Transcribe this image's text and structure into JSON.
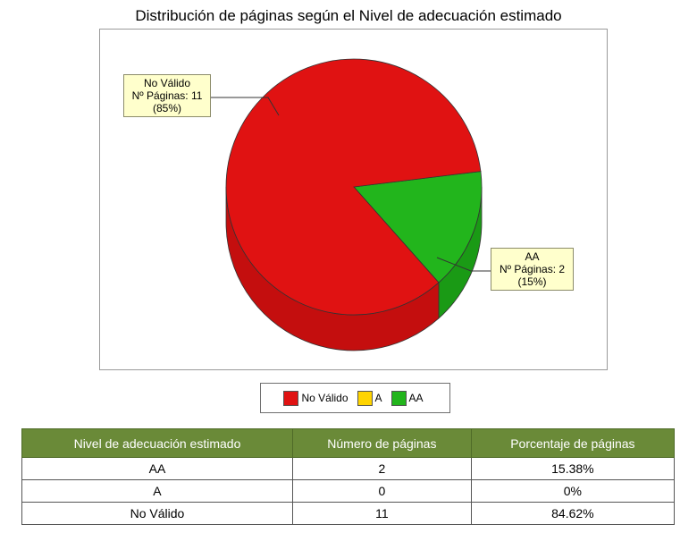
{
  "chart_data": {
    "type": "pie",
    "title": "Distribución de páginas según el Nivel de adecuación estimado",
    "slices": [
      {
        "label": "No Válido",
        "value": 11,
        "percent_label": "(85%)",
        "color": "#e01212",
        "side_color": "#c40e0e"
      },
      {
        "label": "A",
        "value": 0,
        "percent_label": "(0%)",
        "color": "#ffd400",
        "side_color": "#d8b400"
      },
      {
        "label": "AA",
        "value": 2,
        "percent_label": "(15%)",
        "color": "#22b51c",
        "side_color": "#1a9a15"
      }
    ],
    "callouts": [
      {
        "name": "No Válido",
        "line1": "No Válido",
        "line2": "Nº Páginas: 11",
        "line3": "(85%)"
      },
      {
        "name": "AA",
        "line1": "AA",
        "line2": "Nº Páginas: 2",
        "line3": "(15%)"
      }
    ],
    "legend": {
      "placement": "bottom",
      "items": [
        {
          "label": "No Válido",
          "color": "#e01212"
        },
        {
          "label": "A",
          "color": "#ffd400"
        },
        {
          "label": "AA",
          "color": "#22b51c"
        }
      ]
    }
  },
  "table": {
    "headers": [
      "Nivel de adecuación estimado",
      "Número de páginas",
      "Porcentaje de páginas"
    ],
    "rows": [
      [
        "AA",
        "2",
        "15.38%"
      ],
      [
        "A",
        "0",
        "0%"
      ],
      [
        "No Válido",
        "11",
        "84.62%"
      ]
    ]
  }
}
